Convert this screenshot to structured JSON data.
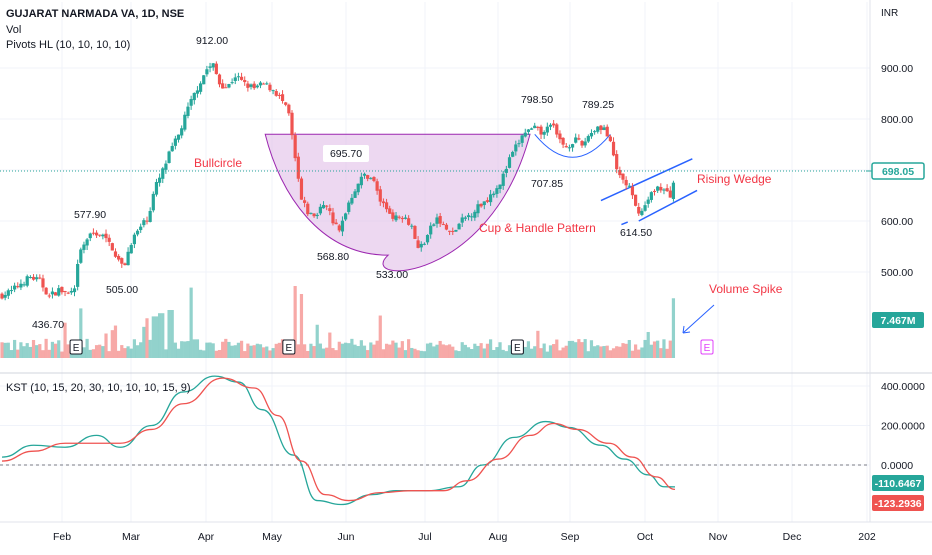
{
  "header": {
    "symbol_line": "GUJARAT NARMADA VA, 1D, NSE",
    "vol_label": "Vol",
    "pivots_label": "Pivots HL (10, 10, 10, 10)",
    "currency": "INR"
  },
  "chart_data": [
    {
      "type": "candlestick",
      "price_axis_ticks": [
        "900.00",
        "800.00",
        "700.00",
        "600.00",
        "500.00"
      ],
      "price_axis_values": [
        900,
        800,
        700,
        600,
        500
      ],
      "ylim": [
        380,
        990
      ],
      "time_axis_labels": [
        "Feb",
        "Mar",
        "Apr",
        "May",
        "Jun",
        "Jul",
        "Aug",
        "Sep",
        "Oct",
        "Nov",
        "Dec",
        "202"
      ],
      "current_price": "698.05",
      "current_price_value": 698.05,
      "pivot_labels": [
        {
          "text": "912.00",
          "value": 912,
          "date": "Apr"
        },
        {
          "text": "577.90",
          "value": 577.9,
          "date": "Feb"
        },
        {
          "text": "505.00",
          "value": 505,
          "date": "Feb-Mar"
        },
        {
          "text": "436.70",
          "value": 436.7,
          "date": "Jan"
        },
        {
          "text": "695.70",
          "value": 695.7,
          "date": "Jun"
        },
        {
          "text": "568.80",
          "value": 568.8,
          "date": "May"
        },
        {
          "text": "533.00",
          "value": 533,
          "date": "Jun"
        },
        {
          "text": "798.50",
          "value": 798.5,
          "date": "Aug"
        },
        {
          "text": "789.25",
          "value": 789.25,
          "date": "Sep"
        },
        {
          "text": "707.85",
          "value": 707.85,
          "date": "Aug-Sep"
        },
        {
          "text": "614.50",
          "value": 614.5,
          "date": "Oct"
        }
      ],
      "close_path": [
        {
          "d": 0,
          "c": 455
        },
        {
          "d": 6,
          "c": 462
        },
        {
          "d": 12,
          "c": 478
        },
        {
          "d": 18,
          "c": 490
        },
        {
          "d": 24,
          "c": 482
        },
        {
          "d": 30,
          "c": 452
        },
        {
          "d": 36,
          "c": 465
        },
        {
          "d": 42,
          "c": 456
        },
        {
          "d": 46,
          "c": 462
        },
        {
          "d": 49,
          "c": 535
        },
        {
          "d": 54,
          "c": 565
        },
        {
          "d": 59,
          "c": 578
        },
        {
          "d": 64,
          "c": 570
        },
        {
          "d": 70,
          "c": 548
        },
        {
          "d": 74,
          "c": 522
        },
        {
          "d": 77,
          "c": 507
        },
        {
          "d": 82,
          "c": 560
        },
        {
          "d": 88,
          "c": 588
        },
        {
          "d": 93,
          "c": 610
        },
        {
          "d": 97,
          "c": 665
        },
        {
          "d": 101,
          "c": 690
        },
        {
          "d": 106,
          "c": 730
        },
        {
          "d": 112,
          "c": 768
        },
        {
          "d": 118,
          "c": 820
        },
        {
          "d": 124,
          "c": 862
        },
        {
          "d": 130,
          "c": 898
        },
        {
          "d": 134,
          "c": 905
        },
        {
          "d": 138,
          "c": 870
        },
        {
          "d": 143,
          "c": 862
        },
        {
          "d": 148,
          "c": 885
        },
        {
          "d": 154,
          "c": 868
        },
        {
          "d": 160,
          "c": 860
        },
        {
          "d": 166,
          "c": 868
        },
        {
          "d": 172,
          "c": 858
        },
        {
          "d": 177,
          "c": 840
        },
        {
          "d": 182,
          "c": 808
        },
        {
          "d": 186,
          "c": 720
        },
        {
          "d": 190,
          "c": 640
        },
        {
          "d": 195,
          "c": 612
        },
        {
          "d": 200,
          "c": 612
        },
        {
          "d": 205,
          "c": 640
        },
        {
          "d": 210,
          "c": 600
        },
        {
          "d": 214,
          "c": 578
        },
        {
          "d": 219,
          "c": 630
        },
        {
          "d": 225,
          "c": 670
        },
        {
          "d": 230,
          "c": 690
        },
        {
          "d": 235,
          "c": 685
        },
        {
          "d": 240,
          "c": 640
        },
        {
          "d": 245,
          "c": 620
        },
        {
          "d": 250,
          "c": 605
        },
        {
          "d": 255,
          "c": 612
        },
        {
          "d": 260,
          "c": 590
        },
        {
          "d": 264,
          "c": 545
        },
        {
          "d": 268,
          "c": 560
        },
        {
          "d": 272,
          "c": 585
        },
        {
          "d": 276,
          "c": 605
        },
        {
          "d": 281,
          "c": 585
        },
        {
          "d": 286,
          "c": 575
        },
        {
          "d": 291,
          "c": 598
        },
        {
          "d": 296,
          "c": 610
        },
        {
          "d": 302,
          "c": 628
        },
        {
          "d": 307,
          "c": 640
        },
        {
          "d": 312,
          "c": 660
        },
        {
          "d": 317,
          "c": 680
        },
        {
          "d": 322,
          "c": 720
        },
        {
          "d": 327,
          "c": 750
        },
        {
          "d": 332,
          "c": 775
        },
        {
          "d": 338,
          "c": 780
        },
        {
          "d": 344,
          "c": 770
        },
        {
          "d": 348,
          "c": 795
        },
        {
          "d": 353,
          "c": 760
        },
        {
          "d": 358,
          "c": 745
        },
        {
          "d": 363,
          "c": 760
        },
        {
          "d": 368,
          "c": 748
        },
        {
          "d": 373,
          "c": 772
        },
        {
          "d": 378,
          "c": 785
        },
        {
          "d": 382,
          "c": 783
        },
        {
          "d": 386,
          "c": 750
        },
        {
          "d": 390,
          "c": 700
        },
        {
          "d": 394,
          "c": 680
        },
        {
          "d": 398,
          "c": 665
        },
        {
          "d": 402,
          "c": 625
        },
        {
          "d": 406,
          "c": 618
        },
        {
          "d": 410,
          "c": 642
        },
        {
          "d": 415,
          "c": 668
        },
        {
          "d": 420,
          "c": 660
        },
        {
          "d": 424,
          "c": 648
        },
        {
          "d": 427,
          "c": 698
        }
      ],
      "volume_series": {
        "name": "Vol",
        "current_label": "7.467M",
        "current_value": 7.467,
        "spikes": [
          {
            "d": 50,
            "v": 6.2
          },
          {
            "d": 97,
            "v": 5.2
          },
          {
            "d": 101,
            "v": 5.6
          },
          {
            "d": 107,
            "v": 6.0
          },
          {
            "d": 120,
            "v": 8.8
          },
          {
            "d": 186,
            "v": 9.0
          },
          {
            "d": 190,
            "v": 8.0
          },
          {
            "d": 427,
            "v": 7.467
          }
        ]
      },
      "earnings_markers": [
        {
          "text": "E",
          "d": 47
        },
        {
          "text": "E",
          "d": 182
        },
        {
          "text": "E",
          "d": 327
        },
        {
          "text": "E",
          "d": 450,
          "upcoming": true
        }
      ]
    },
    {
      "type": "line",
      "title": "KST (10, 15, 20, 30, 10, 10, 10, 15, 9)",
      "yaxis_ticks": [
        "400.0000",
        "200.0000",
        "0.0000"
      ],
      "yaxis_values": [
        400,
        200,
        0
      ],
      "ylim": [
        -250,
        470
      ],
      "current_labels": [
        "-110.6467",
        "-123.2936"
      ],
      "series": [
        {
          "role": "kst",
          "color": "#26a69a",
          "points": [
            {
              "d": 0,
              "v": 40
            },
            {
              "d": 20,
              "v": 100
            },
            {
              "d": 40,
              "v": 90
            },
            {
              "d": 60,
              "v": 150
            },
            {
              "d": 75,
              "v": 90
            },
            {
              "d": 95,
              "v": 200
            },
            {
              "d": 115,
              "v": 370
            },
            {
              "d": 135,
              "v": 450
            },
            {
              "d": 150,
              "v": 420
            },
            {
              "d": 165,
              "v": 280
            },
            {
              "d": 185,
              "v": 50
            },
            {
              "d": 200,
              "v": -180
            },
            {
              "d": 215,
              "v": -200
            },
            {
              "d": 235,
              "v": -150
            },
            {
              "d": 250,
              "v": -130
            },
            {
              "d": 270,
              "v": -130
            },
            {
              "d": 290,
              "v": -110
            },
            {
              "d": 305,
              "v": 0
            },
            {
              "d": 325,
              "v": 140
            },
            {
              "d": 345,
              "v": 220
            },
            {
              "d": 360,
              "v": 190
            },
            {
              "d": 380,
              "v": 100
            },
            {
              "d": 395,
              "v": 30
            },
            {
              "d": 410,
              "v": -50
            },
            {
              "d": 420,
              "v": -110
            },
            {
              "d": 427,
              "v": -110.6467
            }
          ]
        },
        {
          "role": "signal",
          "color": "#ef5350",
          "points": [
            {
              "d": 0,
              "v": 20
            },
            {
              "d": 20,
              "v": 70
            },
            {
              "d": 40,
              "v": 110
            },
            {
              "d": 60,
              "v": 110
            },
            {
              "d": 75,
              "v": 110
            },
            {
              "d": 95,
              "v": 180
            },
            {
              "d": 115,
              "v": 310
            },
            {
              "d": 140,
              "v": 440
            },
            {
              "d": 160,
              "v": 390
            },
            {
              "d": 175,
              "v": 250
            },
            {
              "d": 190,
              "v": 20
            },
            {
              "d": 205,
              "v": -150
            },
            {
              "d": 220,
              "v": -180
            },
            {
              "d": 240,
              "v": -140
            },
            {
              "d": 260,
              "v": -130
            },
            {
              "d": 280,
              "v": -130
            },
            {
              "d": 295,
              "v": -80
            },
            {
              "d": 315,
              "v": 30
            },
            {
              "d": 335,
              "v": 150
            },
            {
              "d": 350,
              "v": 210
            },
            {
              "d": 365,
              "v": 180
            },
            {
              "d": 385,
              "v": 110
            },
            {
              "d": 400,
              "v": 40
            },
            {
              "d": 415,
              "v": -60
            },
            {
              "d": 427,
              "v": -123.2936
            }
          ]
        }
      ]
    }
  ],
  "annotations": {
    "bullcircle": "Bullcircle",
    "rising_wedge": "Rising Wedge",
    "cup_handle": "Cup & Handle Pattern",
    "volume_spike": "Volume Spike"
  },
  "colors": {
    "up": "#26a69a",
    "down": "#ef5350",
    "annotation": "#f23645",
    "cup_fill": "#e1bee7",
    "cup_stroke": "#9c27b0",
    "handle": "#2962ff",
    "earnings": "#e040fb"
  }
}
